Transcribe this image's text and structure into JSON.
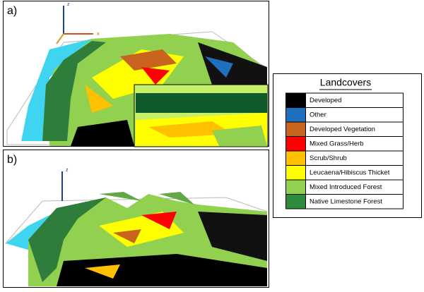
{
  "panels": [
    {
      "label": "a)",
      "axes": [
        "z",
        "x"
      ]
    },
    {
      "label": "b)",
      "axes": [
        "z"
      ]
    }
  ],
  "legend": {
    "title": "Landcovers",
    "items": [
      {
        "name": "Developed",
        "color": "#000000"
      },
      {
        "name": "Other",
        "color": "#1f6fbf"
      },
      {
        "name": "Developed Vegetation",
        "color": "#c8641e"
      },
      {
        "name": "Mixed Grass/Herb",
        "color": "#ff0000"
      },
      {
        "name": "Scrub/Shrub",
        "color": "#ffc000"
      },
      {
        "name": "Leucaena/Hibiscus Thicket",
        "color": "#ffff00"
      },
      {
        "name": "Mixed Introduced Forest",
        "color": "#92d050"
      },
      {
        "name": "Native Limestone Forest",
        "color": "#2e8b3c"
      }
    ]
  }
}
